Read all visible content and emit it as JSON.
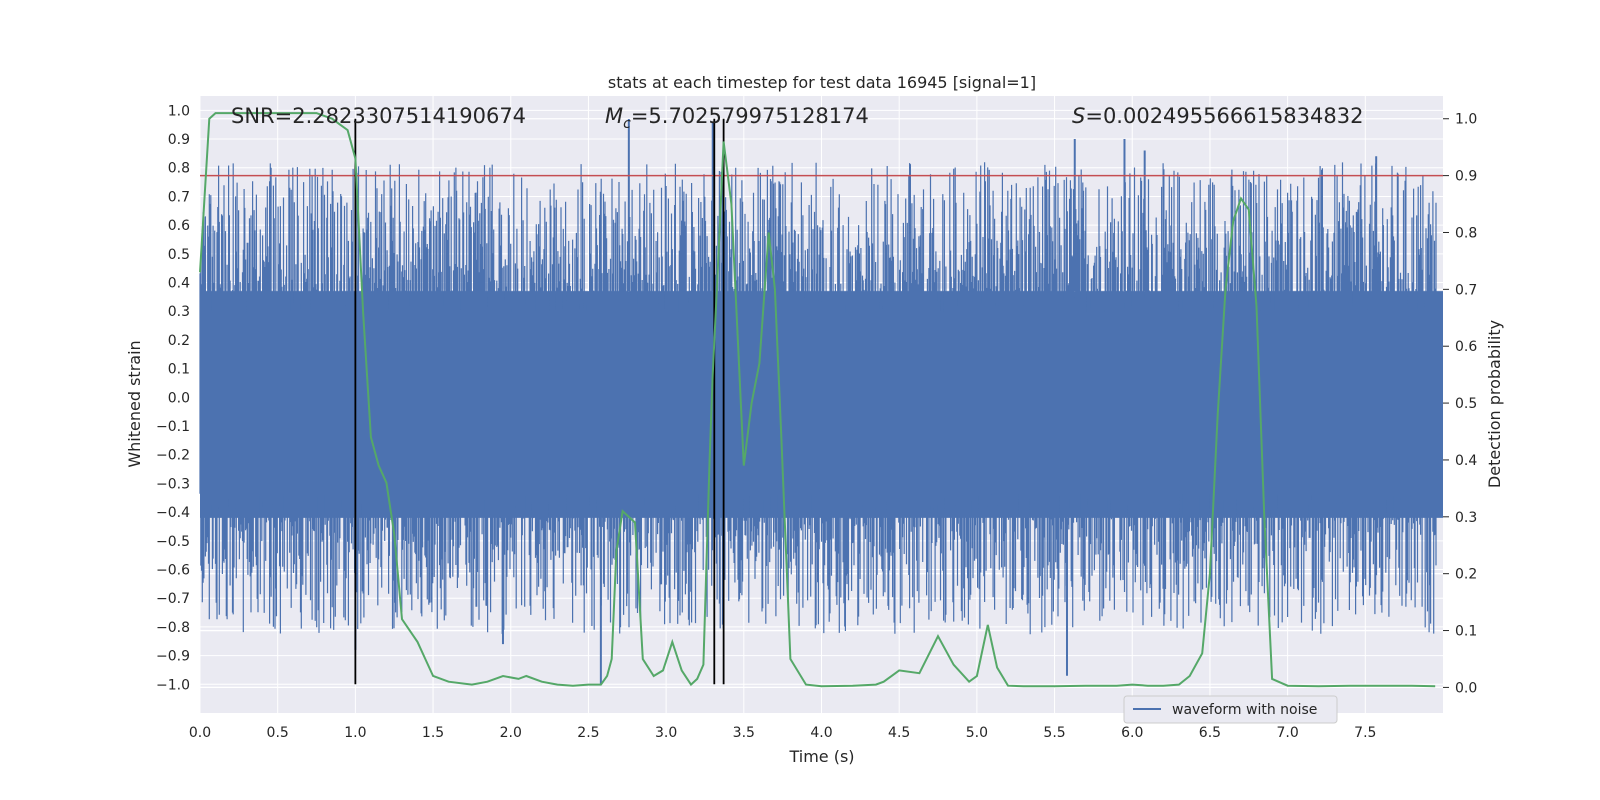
{
  "chart_data": {
    "type": "line",
    "title": "stats at each timestep for test data 16945 [signal=1]",
    "xlabel": "Time (s)",
    "ylabel": "Whitened strain",
    "y2label": "Detection probability",
    "xlim": [
      0.0,
      8.0
    ],
    "ylim": [
      -1.1,
      1.05
    ],
    "y2lim": [
      -0.045,
      1.04
    ],
    "xticks": [
      0.0,
      0.5,
      1.0,
      1.5,
      2.0,
      2.5,
      3.0,
      3.5,
      4.0,
      4.5,
      5.0,
      5.5,
      6.0,
      6.5,
      7.0,
      7.5
    ],
    "yticks": [
      -1.0,
      -0.9,
      -0.8,
      -0.7,
      -0.6,
      -0.5,
      -0.4,
      -0.3,
      -0.2,
      -0.1,
      0.0,
      0.1,
      0.2,
      0.3,
      0.4,
      0.5,
      0.6,
      0.7,
      0.8,
      0.9,
      1.0
    ],
    "y2ticks": [
      0.0,
      0.1,
      0.2,
      0.3,
      0.4,
      0.5,
      0.6,
      0.7,
      0.8,
      0.9,
      1.0
    ],
    "grid": true,
    "legend": {
      "entries": [
        "waveform with noise"
      ],
      "placement": "lower-right"
    },
    "annotations": {
      "snr": "SNR=2.2823307514190674",
      "mc_symbol": "M",
      "mc_sub": "c",
      "mc_value": "=5.702579975128174",
      "s_symbol": "S",
      "s_value": "=0.002495566615834832"
    },
    "threshold": {
      "axis": "y2",
      "value": 0.9,
      "color": "#c44e52"
    },
    "vertical_lines": [
      1.0,
      3.31,
      3.37
    ],
    "colors": {
      "waveform": "#4c72b0",
      "probability": "#55a868",
      "threshold": "#c44e52",
      "markers": "#000000"
    },
    "series": [
      {
        "name": "waveform with noise",
        "axis": "y",
        "description_free": true,
        "noise_envelope": {
          "min": -0.95,
          "max": 0.95,
          "core_low": -0.42,
          "core_high": 0.37
        },
        "peaks": [
          {
            "x": 2.76,
            "y": 0.97
          },
          {
            "x": 3.3,
            "y": 0.96
          },
          {
            "x": 5.63,
            "y": 0.9
          },
          {
            "x": 5.95,
            "y": 0.9
          },
          {
            "x": 6.08,
            "y": 0.86
          },
          {
            "x": 7.57,
            "y": 0.84
          },
          {
            "x": 2.58,
            "y": -1.0
          },
          {
            "x": 5.58,
            "y": -0.97
          },
          {
            "x": 1.0,
            "y": -0.88
          },
          {
            "x": 1.95,
            "y": -0.86
          }
        ]
      },
      {
        "name": "detection probability",
        "axis": "y2",
        "x": [
          0.0,
          0.06,
          0.1,
          0.2,
          0.3,
          0.4,
          0.5,
          0.6,
          0.7,
          0.75,
          0.8,
          0.85,
          0.9,
          0.95,
          1.0,
          1.05,
          1.1,
          1.15,
          1.2,
          1.25,
          1.3,
          1.4,
          1.45,
          1.5,
          1.6,
          1.75,
          1.85,
          1.95,
          2.05,
          2.1,
          2.2,
          2.3,
          2.4,
          2.5,
          2.58,
          2.62,
          2.65,
          2.68,
          2.72,
          2.8,
          2.85,
          2.92,
          2.98,
          3.04,
          3.1,
          3.16,
          3.2,
          3.24,
          3.28,
          3.3,
          3.33,
          3.37,
          3.42,
          3.5,
          3.55,
          3.6,
          3.66,
          3.7,
          3.74,
          3.8,
          3.9,
          4.0,
          4.2,
          4.35,
          4.4,
          4.5,
          4.63,
          4.75,
          4.85,
          4.95,
          5.0,
          5.07,
          5.13,
          5.2,
          5.3,
          5.5,
          5.7,
          5.9,
          6.0,
          6.1,
          6.2,
          6.3,
          6.37,
          6.45,
          6.5,
          6.55,
          6.6,
          6.65,
          6.7,
          6.75,
          6.8,
          6.85,
          6.9,
          7.0,
          7.2,
          7.4,
          7.6,
          7.8,
          7.95
        ],
        "values": [
          0.73,
          1.0,
          1.01,
          1.01,
          1.01,
          1.01,
          1.01,
          1.01,
          1.01,
          1.01,
          1.005,
          1.0,
          0.99,
          0.98,
          0.93,
          0.66,
          0.44,
          0.39,
          0.36,
          0.27,
          0.12,
          0.08,
          0.05,
          0.02,
          0.01,
          0.005,
          0.01,
          0.02,
          0.015,
          0.02,
          0.01,
          0.005,
          0.003,
          0.005,
          0.005,
          0.02,
          0.05,
          0.24,
          0.31,
          0.29,
          0.05,
          0.02,
          0.03,
          0.08,
          0.03,
          0.005,
          0.015,
          0.04,
          0.4,
          0.55,
          0.72,
          0.96,
          0.85,
          0.39,
          0.5,
          0.57,
          0.8,
          0.7,
          0.45,
          0.05,
          0.005,
          0.002,
          0.003,
          0.005,
          0.01,
          0.03,
          0.025,
          0.09,
          0.04,
          0.01,
          0.02,
          0.11,
          0.035,
          0.003,
          0.002,
          0.002,
          0.003,
          0.003,
          0.005,
          0.003,
          0.003,
          0.005,
          0.02,
          0.06,
          0.2,
          0.48,
          0.7,
          0.82,
          0.86,
          0.84,
          0.67,
          0.3,
          0.015,
          0.003,
          0.002,
          0.003,
          0.003,
          0.003,
          0.002
        ]
      }
    ]
  }
}
